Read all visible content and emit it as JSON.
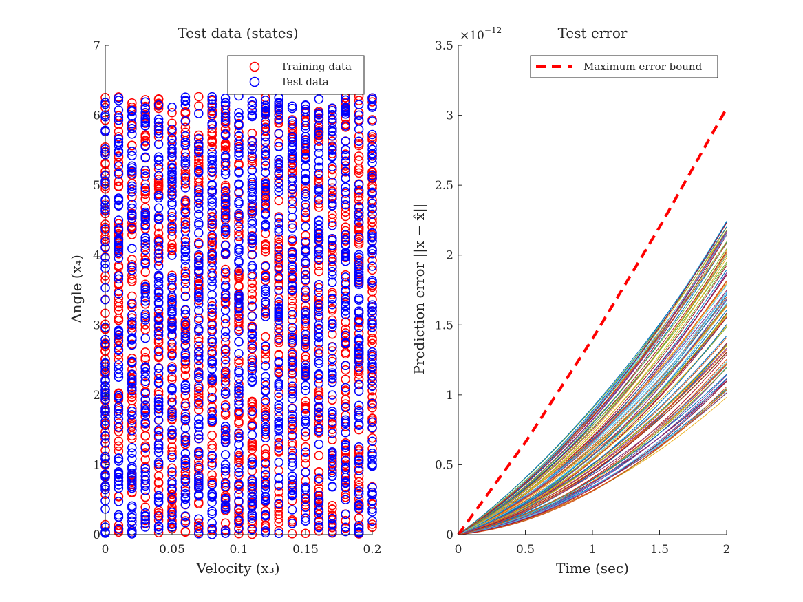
{
  "chart_data": [
    {
      "type": "scatter",
      "title": "Test data (states)",
      "xlabel": "Velocity (x₃)",
      "ylabel": "Angle (x₄)",
      "xlim": [
        0,
        0.2
      ],
      "ylim": [
        0,
        7
      ],
      "xticks": [
        0,
        0.05,
        0.1,
        0.15,
        0.2
      ],
      "xtick_labels": [
        "0",
        "0.05",
        "0.1",
        "0.15",
        "0.2"
      ],
      "yticks": [
        0,
        1,
        2,
        3,
        4,
        5,
        6,
        7
      ],
      "ytick_labels": [
        "0",
        "1",
        "2",
        "3",
        "4",
        "5",
        "6",
        "7"
      ],
      "grid": false,
      "legend_position": "top-right",
      "marker": "open circle",
      "velocity_columns": [
        0,
        0.01,
        0.02,
        0.03,
        0.04,
        0.05,
        0.06,
        0.07,
        0.08,
        0.09,
        0.1,
        0.11,
        0.12,
        0.13,
        0.14,
        0.15,
        0.16,
        0.17,
        0.18,
        0.19,
        0.2
      ],
      "angle_range": [
        0,
        6.28
      ],
      "series": [
        {
          "name": "Training data",
          "color": "#ff0000"
        },
        {
          "name": "Test data",
          "color": "#0000ff"
        }
      ]
    },
    {
      "type": "line",
      "title": "Test error",
      "xlabel": "Time (sec)",
      "ylabel": "Prediction error ||x − x̂||",
      "exponent_label": "×10",
      "exponent_power": "−12",
      "xlim": [
        0,
        2
      ],
      "ylim": [
        0,
        3.5
      ],
      "xticks": [
        0,
        0.5,
        1,
        1.5,
        2
      ],
      "xtick_labels": [
        "0",
        "0.5",
        "1",
        "1.5",
        "2"
      ],
      "yticks": [
        0,
        0.5,
        1,
        1.5,
        2,
        2.5,
        3,
        3.5
      ],
      "ytick_labels": [
        "0",
        "0.5",
        "1",
        "1.5",
        "2",
        "2.5",
        "3",
        "3.5"
      ],
      "grid": false,
      "legend_position": "top-right",
      "bound_series": {
        "name": "Maximum error bound",
        "color": "#ff0000",
        "style": "dashed",
        "x": [
          0,
          0.5,
          1,
          1.5,
          2
        ],
        "y": [
          0,
          0.66,
          1.4,
          2.2,
          3.05
        ]
      },
      "trajectory_final_error_range": [
        0.98,
        2.27
      ],
      "trajectory_count": 100,
      "trajectory_colors": [
        "#0072bd",
        "#d95319",
        "#edb120",
        "#7e2f8e",
        "#77ac30",
        "#4dbeee",
        "#a2142f"
      ]
    }
  ]
}
